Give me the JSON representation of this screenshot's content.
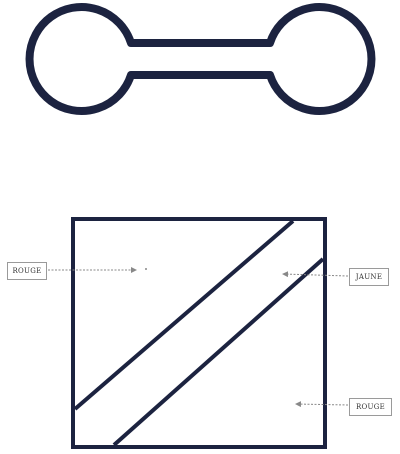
{
  "labels": {
    "rouge_left": "ROUGE",
    "jaune": "JAUNE",
    "rouge_right": "ROUGE"
  },
  "colors": {
    "outline": "#1c2340",
    "arrow": "#888888",
    "background": "#ffffff"
  }
}
